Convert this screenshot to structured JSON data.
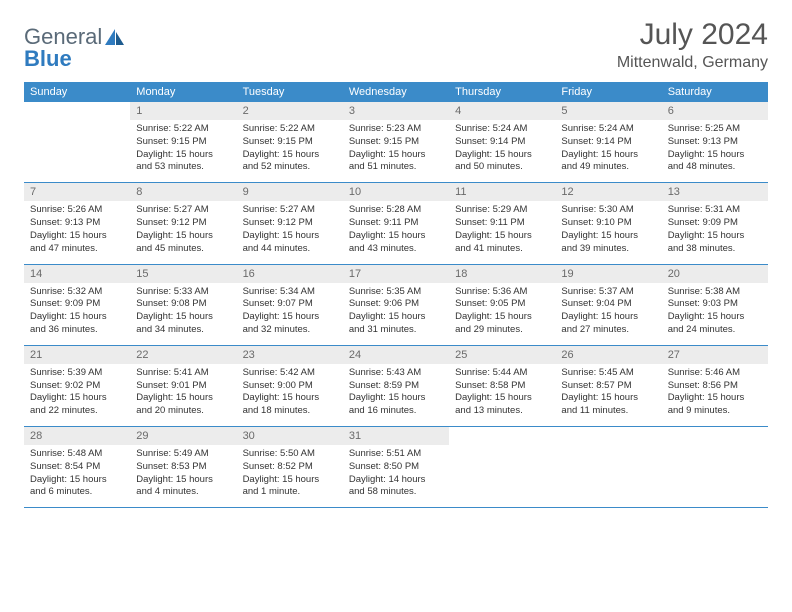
{
  "logo": {
    "part1": "General",
    "part2": "Blue"
  },
  "title": "July 2024",
  "location": "Mittenwald, Germany",
  "colors": {
    "header_bg": "#3b8bc9",
    "header_text": "#ffffff",
    "daynum_bg": "#ececec",
    "daynum_text": "#6a6a6a",
    "body_text": "#333333",
    "rule": "#3b8bc9",
    "logo_gray": "#5a6a78",
    "logo_blue": "#2f7bbf"
  },
  "day_labels": [
    "Sunday",
    "Monday",
    "Tuesday",
    "Wednesday",
    "Thursday",
    "Friday",
    "Saturday"
  ],
  "weeks": [
    {
      "nums": [
        "",
        "1",
        "2",
        "3",
        "4",
        "5",
        "6"
      ],
      "cells": [
        null,
        {
          "sunrise": "Sunrise: 5:22 AM",
          "sunset": "Sunset: 9:15 PM",
          "day1": "Daylight: 15 hours",
          "day2": "and 53 minutes."
        },
        {
          "sunrise": "Sunrise: 5:22 AM",
          "sunset": "Sunset: 9:15 PM",
          "day1": "Daylight: 15 hours",
          "day2": "and 52 minutes."
        },
        {
          "sunrise": "Sunrise: 5:23 AM",
          "sunset": "Sunset: 9:15 PM",
          "day1": "Daylight: 15 hours",
          "day2": "and 51 minutes."
        },
        {
          "sunrise": "Sunrise: 5:24 AM",
          "sunset": "Sunset: 9:14 PM",
          "day1": "Daylight: 15 hours",
          "day2": "and 50 minutes."
        },
        {
          "sunrise": "Sunrise: 5:24 AM",
          "sunset": "Sunset: 9:14 PM",
          "day1": "Daylight: 15 hours",
          "day2": "and 49 minutes."
        },
        {
          "sunrise": "Sunrise: 5:25 AM",
          "sunset": "Sunset: 9:13 PM",
          "day1": "Daylight: 15 hours",
          "day2": "and 48 minutes."
        }
      ]
    },
    {
      "nums": [
        "7",
        "8",
        "9",
        "10",
        "11",
        "12",
        "13"
      ],
      "cells": [
        {
          "sunrise": "Sunrise: 5:26 AM",
          "sunset": "Sunset: 9:13 PM",
          "day1": "Daylight: 15 hours",
          "day2": "and 47 minutes."
        },
        {
          "sunrise": "Sunrise: 5:27 AM",
          "sunset": "Sunset: 9:12 PM",
          "day1": "Daylight: 15 hours",
          "day2": "and 45 minutes."
        },
        {
          "sunrise": "Sunrise: 5:27 AM",
          "sunset": "Sunset: 9:12 PM",
          "day1": "Daylight: 15 hours",
          "day2": "and 44 minutes."
        },
        {
          "sunrise": "Sunrise: 5:28 AM",
          "sunset": "Sunset: 9:11 PM",
          "day1": "Daylight: 15 hours",
          "day2": "and 43 minutes."
        },
        {
          "sunrise": "Sunrise: 5:29 AM",
          "sunset": "Sunset: 9:11 PM",
          "day1": "Daylight: 15 hours",
          "day2": "and 41 minutes."
        },
        {
          "sunrise": "Sunrise: 5:30 AM",
          "sunset": "Sunset: 9:10 PM",
          "day1": "Daylight: 15 hours",
          "day2": "and 39 minutes."
        },
        {
          "sunrise": "Sunrise: 5:31 AM",
          "sunset": "Sunset: 9:09 PM",
          "day1": "Daylight: 15 hours",
          "day2": "and 38 minutes."
        }
      ]
    },
    {
      "nums": [
        "14",
        "15",
        "16",
        "17",
        "18",
        "19",
        "20"
      ],
      "cells": [
        {
          "sunrise": "Sunrise: 5:32 AM",
          "sunset": "Sunset: 9:09 PM",
          "day1": "Daylight: 15 hours",
          "day2": "and 36 minutes."
        },
        {
          "sunrise": "Sunrise: 5:33 AM",
          "sunset": "Sunset: 9:08 PM",
          "day1": "Daylight: 15 hours",
          "day2": "and 34 minutes."
        },
        {
          "sunrise": "Sunrise: 5:34 AM",
          "sunset": "Sunset: 9:07 PM",
          "day1": "Daylight: 15 hours",
          "day2": "and 32 minutes."
        },
        {
          "sunrise": "Sunrise: 5:35 AM",
          "sunset": "Sunset: 9:06 PM",
          "day1": "Daylight: 15 hours",
          "day2": "and 31 minutes."
        },
        {
          "sunrise": "Sunrise: 5:36 AM",
          "sunset": "Sunset: 9:05 PM",
          "day1": "Daylight: 15 hours",
          "day2": "and 29 minutes."
        },
        {
          "sunrise": "Sunrise: 5:37 AM",
          "sunset": "Sunset: 9:04 PM",
          "day1": "Daylight: 15 hours",
          "day2": "and 27 minutes."
        },
        {
          "sunrise": "Sunrise: 5:38 AM",
          "sunset": "Sunset: 9:03 PM",
          "day1": "Daylight: 15 hours",
          "day2": "and 24 minutes."
        }
      ]
    },
    {
      "nums": [
        "21",
        "22",
        "23",
        "24",
        "25",
        "26",
        "27"
      ],
      "cells": [
        {
          "sunrise": "Sunrise: 5:39 AM",
          "sunset": "Sunset: 9:02 PM",
          "day1": "Daylight: 15 hours",
          "day2": "and 22 minutes."
        },
        {
          "sunrise": "Sunrise: 5:41 AM",
          "sunset": "Sunset: 9:01 PM",
          "day1": "Daylight: 15 hours",
          "day2": "and 20 minutes."
        },
        {
          "sunrise": "Sunrise: 5:42 AM",
          "sunset": "Sunset: 9:00 PM",
          "day1": "Daylight: 15 hours",
          "day2": "and 18 minutes."
        },
        {
          "sunrise": "Sunrise: 5:43 AM",
          "sunset": "Sunset: 8:59 PM",
          "day1": "Daylight: 15 hours",
          "day2": "and 16 minutes."
        },
        {
          "sunrise": "Sunrise: 5:44 AM",
          "sunset": "Sunset: 8:58 PM",
          "day1": "Daylight: 15 hours",
          "day2": "and 13 minutes."
        },
        {
          "sunrise": "Sunrise: 5:45 AM",
          "sunset": "Sunset: 8:57 PM",
          "day1": "Daylight: 15 hours",
          "day2": "and 11 minutes."
        },
        {
          "sunrise": "Sunrise: 5:46 AM",
          "sunset": "Sunset: 8:56 PM",
          "day1": "Daylight: 15 hours",
          "day2": "and 9 minutes."
        }
      ]
    },
    {
      "nums": [
        "28",
        "29",
        "30",
        "31",
        "",
        "",
        ""
      ],
      "cells": [
        {
          "sunrise": "Sunrise: 5:48 AM",
          "sunset": "Sunset: 8:54 PM",
          "day1": "Daylight: 15 hours",
          "day2": "and 6 minutes."
        },
        {
          "sunrise": "Sunrise: 5:49 AM",
          "sunset": "Sunset: 8:53 PM",
          "day1": "Daylight: 15 hours",
          "day2": "and 4 minutes."
        },
        {
          "sunrise": "Sunrise: 5:50 AM",
          "sunset": "Sunset: 8:52 PM",
          "day1": "Daylight: 15 hours",
          "day2": "and 1 minute."
        },
        {
          "sunrise": "Sunrise: 5:51 AM",
          "sunset": "Sunset: 8:50 PM",
          "day1": "Daylight: 14 hours",
          "day2": "and 58 minutes."
        },
        null,
        null,
        null
      ]
    }
  ]
}
